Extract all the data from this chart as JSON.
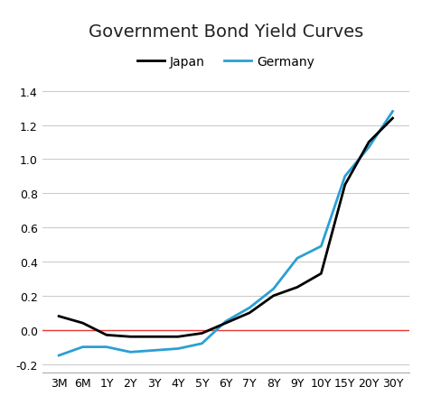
{
  "title": "Government Bond Yield Curves",
  "x_labels": [
    "3M",
    "6M",
    "1Y",
    "2Y",
    "3Y",
    "4Y",
    "5Y",
    "6Y",
    "7Y",
    "8Y",
    "9Y",
    "10Y",
    "15Y",
    "20Y",
    "30Y"
  ],
  "japan_yields": [
    0.08,
    0.04,
    -0.03,
    -0.04,
    -0.04,
    -0.04,
    -0.02,
    0.04,
    0.1,
    0.2,
    0.25,
    0.33,
    0.85,
    1.1,
    1.24
  ],
  "germany_yields": [
    -0.15,
    -0.1,
    -0.1,
    -0.13,
    -0.12,
    -0.11,
    -0.08,
    0.05,
    0.13,
    0.24,
    0.42,
    0.49,
    0.9,
    1.07,
    1.28
  ],
  "japan_color": "#000000",
  "germany_color": "#2b9fd4",
  "zero_line_color": "#e53935",
  "grid_color": "#cccccc",
  "background_color": "#ffffff",
  "ylim": [
    -0.25,
    1.5
  ],
  "yticks": [
    -0.2,
    0.0,
    0.2,
    0.4,
    0.6,
    0.8,
    1.0,
    1.2,
    1.4
  ],
  "japan_label": "Japan",
  "germany_label": "Germany",
  "line_width": 2.0,
  "title_fontsize": 14,
  "tick_fontsize": 9,
  "legend_fontsize": 10
}
